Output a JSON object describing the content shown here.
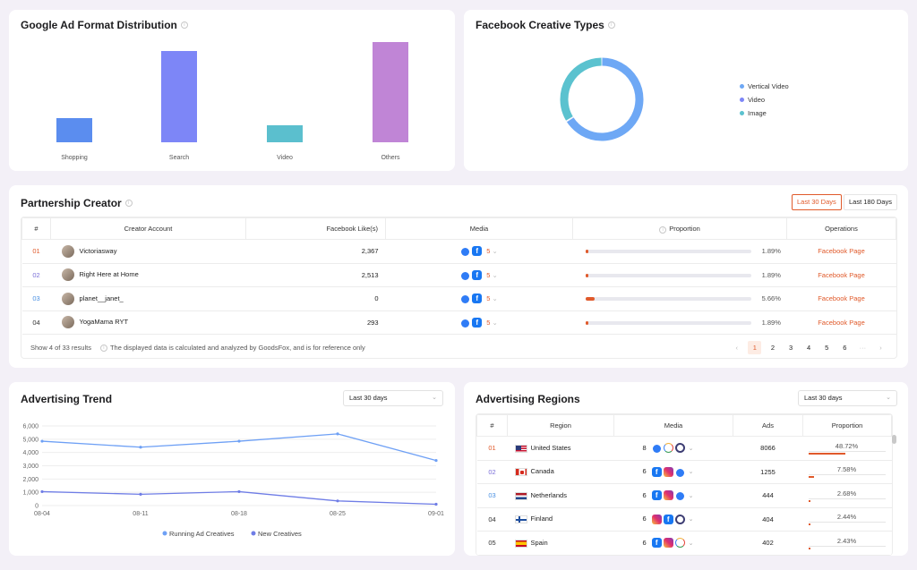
{
  "google_chart": {
    "title": "Google Ad Format Distribution",
    "chart_data": {
      "type": "bar",
      "categories": [
        "Shopping",
        "Search",
        "Video",
        "Others"
      ],
      "values": [
        0.27,
        1.0,
        0.19,
        1.1
      ],
      "colors": [
        "#5b8def",
        "#7d86f7",
        "#5bbfce",
        "#c085d6"
      ],
      "title": "Google Ad Format Distribution"
    }
  },
  "facebook_chart": {
    "title": "Facebook Creative Types",
    "chart_data": {
      "type": "pie",
      "labels": [
        "Vertical Video",
        "Video",
        "Image"
      ],
      "values": [
        0.66,
        0.003,
        0.337
      ],
      "colors": [
        "#6ea8f5",
        "#7d86f7",
        "#5bc2cf"
      ]
    },
    "legend": [
      "Vertical Video",
      "Video",
      "Image"
    ]
  },
  "partnership": {
    "title": "Partnership Creator",
    "tabs": [
      "Last 30 Days",
      "Last 180 Days"
    ],
    "headers": [
      "#",
      "Creator Account",
      "Facebook Like(s)",
      "Media",
      "Proportion",
      "Operations"
    ],
    "rows": [
      {
        "rank": "01",
        "account": "Victoriasway",
        "likes": "2,367",
        "more": "5",
        "proportion": "1.89%",
        "pct": 0.0189,
        "op": "Facebook Page"
      },
      {
        "rank": "02",
        "account": "Right Here at Home",
        "likes": "2,513",
        "more": "5",
        "proportion": "1.89%",
        "pct": 0.0189,
        "op": "Facebook Page"
      },
      {
        "rank": "03",
        "account": "planet__janet_",
        "likes": "0",
        "more": "5",
        "proportion": "5.66%",
        "pct": 0.0566,
        "op": "Facebook Page"
      },
      {
        "rank": "04",
        "account": "YogaMama RYT",
        "likes": "293",
        "more": "5",
        "proportion": "1.89%",
        "pct": 0.0189,
        "op": "Facebook Page"
      }
    ],
    "footer_results": "Show 4 of 33 results",
    "footer_note": "The displayed data is calculated and analyzed by GoodsFox, and is for reference only",
    "pages": [
      "1",
      "2",
      "3",
      "4",
      "5",
      "6",
      "···"
    ]
  },
  "trend": {
    "title": "Advertising Trend",
    "select": "Last 30 days",
    "chart_data": {
      "type": "line",
      "x": [
        "08-04",
        "08-11",
        "08-18",
        "08-25",
        "09-01"
      ],
      "series": [
        {
          "name": "Running Ad Creatives",
          "values": [
            4850,
            4400,
            4850,
            5400,
            3400
          ],
          "color": "#6ea0f5"
        },
        {
          "name": "New Creatives",
          "values": [
            1050,
            850,
            1050,
            350,
            100
          ],
          "color": "#6f7de6"
        }
      ],
      "yticks": [
        "6,000",
        "5,000",
        "4,000",
        "3,000",
        "2,000",
        "1,000",
        "0"
      ],
      "ylim": [
        0,
        6000
      ]
    }
  },
  "regions": {
    "title": "Advertising Regions",
    "select": "Last 30 days",
    "headers": [
      "#",
      "Region",
      "Media",
      "Ads",
      "Proportion"
    ],
    "rows": [
      {
        "rank": "01",
        "region": "United States",
        "media_count": "8",
        "icons": [
          "msg",
          "g",
          "o"
        ],
        "ads": "8066",
        "proportion": "48.72%",
        "pct": 0.4872
      },
      {
        "rank": "02",
        "region": "Canada",
        "media_count": "6",
        "icons": [
          "fb",
          "ig",
          "msg"
        ],
        "ads": "1255",
        "proportion": "7.58%",
        "pct": 0.0758
      },
      {
        "rank": "03",
        "region": "Netherlands",
        "media_count": "6",
        "icons": [
          "fb",
          "ig",
          "msg"
        ],
        "ads": "444",
        "proportion": "2.68%",
        "pct": 0.0268
      },
      {
        "rank": "04",
        "region": "Finland",
        "media_count": "6",
        "icons": [
          "ig",
          "fb",
          "o"
        ],
        "ads": "404",
        "proportion": "2.44%",
        "pct": 0.0244
      },
      {
        "rank": "05",
        "region": "Spain",
        "media_count": "6",
        "icons": [
          "fb",
          "ig",
          "g"
        ],
        "ads": "402",
        "proportion": "2.43%",
        "pct": 0.0243
      }
    ],
    "flags": [
      "us",
      "ca",
      "nl",
      "fi",
      "es"
    ]
  }
}
